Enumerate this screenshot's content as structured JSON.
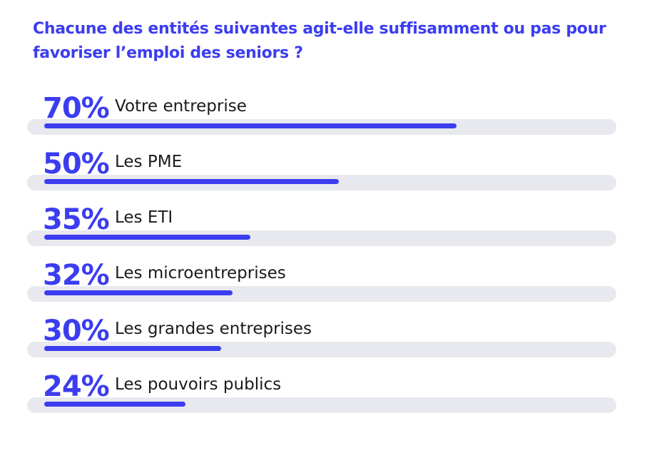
{
  "chart_data": {
    "type": "bar",
    "title": "Chacune des entités suivantes agit-elle suffisamment ou pas pour favoriser l’emploi des seniors ?",
    "orientation": "horizontal",
    "value_labels": [
      "70%",
      "50%",
      "35%",
      "32%",
      "30%",
      "24%"
    ],
    "categories": [
      "Votre entreprise",
      "Les PME",
      "Les ETI",
      "Les microentreprises",
      "Les grandes entreprises",
      "Les pouvoirs publics"
    ],
    "values": [
      70,
      50,
      35,
      32,
      30,
      24
    ],
    "ylim": [
      0,
      100
    ],
    "colors": {
      "accent": "#3b3df0",
      "track": "#e8e9ee",
      "text": "#1a1a1a"
    }
  }
}
